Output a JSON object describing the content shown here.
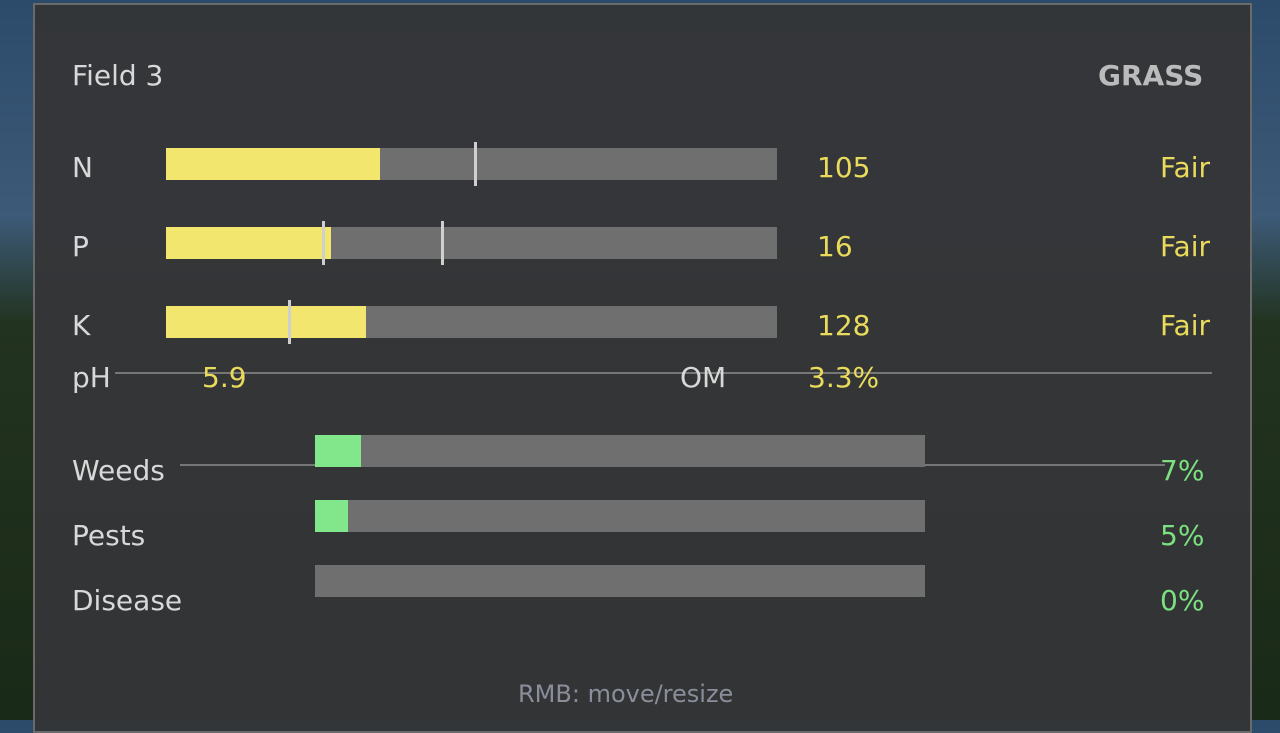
{
  "header": {
    "field": "Field 3",
    "crop": "GRASS"
  },
  "nutrients": [
    {
      "label": "N",
      "value": "105",
      "status": "Fair",
      "fill_pct": 35,
      "markers_pct": [
        50.4
      ]
    },
    {
      "label": "P",
      "value": "16",
      "status": "Fair",
      "fill_pct": 27,
      "markers_pct": [
        25.5,
        45
      ]
    },
    {
      "label": "K",
      "value": "128",
      "status": "Fair",
      "fill_pct": 32.7,
      "markers_pct": [
        20
      ]
    }
  ],
  "soil": {
    "ph_label": "pH",
    "ph_value": "5.9",
    "om_label": "OM",
    "om_value": "3.3%"
  },
  "threats": [
    {
      "label": "Weeds",
      "value": "7%",
      "fill_pct": 7
    },
    {
      "label": "Pests",
      "value": "5%",
      "fill_pct": 5
    },
    {
      "label": "Disease",
      "value": "0%",
      "fill_pct": 0
    }
  ],
  "footer": {
    "hint": "RMB: move/resize"
  },
  "colors": {
    "nutrient_fill": "#f2e66e",
    "threat_fill": "#82e68a",
    "value_yellow": "#eadb5c",
    "value_green": "#7be07f"
  }
}
